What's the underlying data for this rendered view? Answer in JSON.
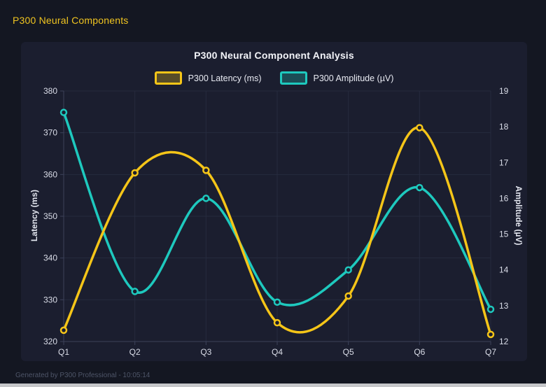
{
  "page": {
    "header_label": "P300 Neural Components",
    "footer_text": "Generated by P300 Professional - 10:05:14",
    "header_color": "#f0c420",
    "page_bg": "#141722",
    "card_bg": "#1b1e2f"
  },
  "chart_data": {
    "type": "line",
    "smooth": true,
    "grid": true,
    "legend_position": "top",
    "title": "P300 Neural Component Analysis",
    "categories": [
      "Q1",
      "Q2",
      "Q3",
      "Q4",
      "Q5",
      "Q6",
      "Q7"
    ],
    "series": [
      {
        "name": "P300 Latency (ms)",
        "axis": "left",
        "color": "#f5c518",
        "values": [
          322.7,
          360.4,
          361.0,
          324.5,
          330.9,
          371.2,
          321.7
        ]
      },
      {
        "name": "P300 Amplitude (µV)",
        "axis": "right",
        "color": "#1ec9be",
        "values": [
          18.4,
          13.4,
          16.0,
          13.1,
          14.0,
          16.3,
          12.9
        ]
      }
    ],
    "left_axis": {
      "label": "Latency (ms)",
      "min": 320,
      "max": 380,
      "ticks": [
        320,
        330,
        340,
        350,
        360,
        370,
        380
      ]
    },
    "right_axis": {
      "label": "Amplitude (µV)",
      "min": 12,
      "max": 19,
      "ticks": [
        12,
        13,
        14,
        15,
        16,
        17,
        18,
        19
      ]
    }
  }
}
